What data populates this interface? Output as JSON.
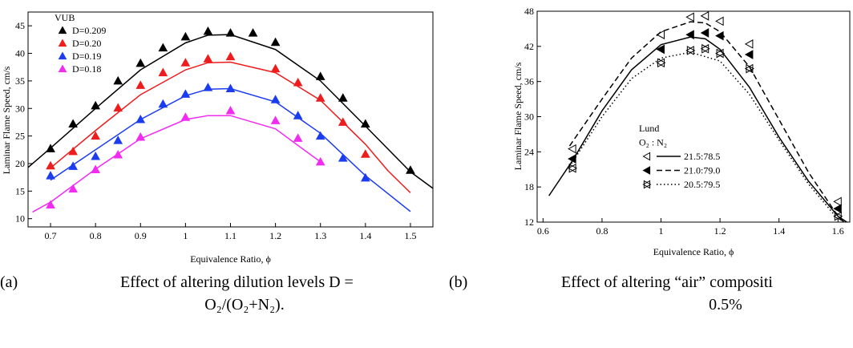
{
  "chart_data": [
    {
      "type": "scatter",
      "ylabel": "Laminar Flame Speed, cm/s",
      "xlabel": "Equivalence Ratio, ϕ",
      "xlim": [
        0.65,
        1.55
      ],
      "xticks": [
        0.7,
        0.8,
        0.9,
        1.0,
        1.1,
        1.2,
        1.3,
        1.4,
        1.5
      ],
      "ylim": [
        8.5,
        47.5
      ],
      "yticks": [
        10,
        15,
        20,
        25,
        30,
        35,
        40,
        45
      ],
      "legend_title": "VUB",
      "caption": {
        "label": "(a)",
        "lines": [
          "Effect of altering dilution levels D =",
          "O₂/(O₂+N₂)."
        ]
      },
      "series": [
        {
          "name": "D=0.209",
          "color": "#000000",
          "marker": "triangle-up",
          "x": [
            0.7,
            0.75,
            0.8,
            0.85,
            0.9,
            0.95,
            1.0,
            1.05,
            1.1,
            1.15,
            1.2,
            1.3,
            1.35,
            1.4,
            1.5
          ],
          "values": [
            22.7,
            27.2,
            30.5,
            35,
            38.2,
            41,
            43,
            44,
            43.7,
            43.7,
            42,
            35.8,
            31.9,
            27.2,
            18.8
          ],
          "fit": {
            "x": [
              0.65,
              0.7,
              0.8,
              0.9,
              1.0,
              1.05,
              1.1,
              1.2,
              1.3,
              1.4,
              1.5,
              1.55
            ],
            "values": [
              19.3,
              22.8,
              30,
              37,
              41.9,
              43.3,
              43.4,
              40.7,
              35,
              26.8,
              18.5,
              15.5
            ]
          }
        },
        {
          "name": "D=0.20",
          "color": "#ee1c1c",
          "marker": "triangle-up",
          "x": [
            0.7,
            0.75,
            0.8,
            0.85,
            0.9,
            0.95,
            1.0,
            1.05,
            1.1,
            1.2,
            1.25,
            1.3,
            1.35,
            1.4
          ],
          "values": [
            19.6,
            22.2,
            25,
            30.1,
            34.2,
            36.5,
            38.3,
            39,
            39.4,
            37.2,
            34.7,
            31.9,
            27.5,
            21.7
          ],
          "fit": {
            "x": [
              0.7,
              0.8,
              0.9,
              1.0,
              1.05,
              1.1,
              1.2,
              1.3,
              1.4,
              1.45,
              1.5
            ],
            "values": [
              19.2,
              26,
              32.5,
              37,
              38.3,
              38.4,
              36.5,
              31.5,
              23.5,
              18.7,
              14.7
            ]
          }
        },
        {
          "name": "D=0.19",
          "color": "#1c3cf0",
          "marker": "triangle-up",
          "x": [
            0.7,
            0.75,
            0.8,
            0.85,
            0.9,
            0.95,
            1.0,
            1.05,
            1.1,
            1.2,
            1.25,
            1.3,
            1.35,
            1.4
          ],
          "values": [
            17.8,
            19.5,
            21.3,
            24.2,
            28,
            30.8,
            32.6,
            33.8,
            33.6,
            31.6,
            28.7,
            25,
            21,
            17.4
          ],
          "fit": {
            "x": [
              0.7,
              0.8,
              0.9,
              1.0,
              1.05,
              1.1,
              1.2,
              1.3,
              1.4,
              1.5
            ],
            "values": [
              17,
              22.5,
              28,
              32.3,
              33.5,
              33.6,
              31.2,
              25.5,
              17.8,
              11.3
            ]
          }
        },
        {
          "name": "D=0.18",
          "color": "#f02cf0",
          "marker": "triangle-up",
          "x": [
            0.7,
            0.75,
            0.8,
            0.85,
            0.9,
            1.0,
            1.1,
            1.2,
            1.25,
            1.3
          ],
          "values": [
            12.5,
            15.4,
            18.9,
            21.6,
            24.8,
            28.4,
            29.6,
            27.8,
            24.6,
            20.3
          ],
          "fit": {
            "x": [
              0.66,
              0.7,
              0.8,
              0.9,
              1.0,
              1.05,
              1.1,
              1.2,
              1.3
            ],
            "values": [
              11.2,
              13,
              19,
              24.5,
              28,
              28.7,
              28.7,
              26.3,
              20.3
            ]
          }
        }
      ]
    },
    {
      "type": "scatter",
      "ylabel": "Laminar Flame Speed, cm/s",
      "xlabel": "Equivalence Ratio, ϕ",
      "xlim": [
        0.58,
        1.64
      ],
      "xticks": [
        0.6,
        0.8,
        1.0,
        1.2,
        1.4,
        1.6
      ],
      "ylim": [
        12,
        48
      ],
      "yticks": [
        12,
        18,
        24,
        30,
        36,
        42,
        48
      ],
      "legend_title": "Lund",
      "legend_subtitle": "O₂ : N₂",
      "caption": {
        "label": "(b)",
        "lines": [
          "Effect of altering “air” compositi",
          "0.5%"
        ]
      },
      "series": [
        {
          "name": "21.5:78.5",
          "color": "#000000",
          "marker": "triangle-left-open",
          "dash": "solid",
          "x": [
            0.7,
            1.0,
            1.1,
            1.15,
            1.2,
            1.3,
            1.6
          ],
          "values": [
            24.5,
            44,
            47,
            47.2,
            46.3,
            42.4,
            15.5
          ],
          "fit": {
            "x": [
              0.62,
              0.7,
              0.8,
              0.9,
              1.0,
              1.1,
              1.15,
              1.2,
              1.3,
              1.4,
              1.5,
              1.6,
              1.63
            ],
            "values": [
              16.5,
              22.5,
              31,
              38,
              42.3,
              43.6,
              43.3,
              41.5,
              35,
              26.5,
              19,
              13,
              12
            ]
          }
        },
        {
          "name": "21.0:79.0",
          "color": "#000000",
          "marker": "triangle-left",
          "dash": "dashed",
          "x": [
            0.7,
            1.0,
            1.1,
            1.15,
            1.2,
            1.3,
            1.6
          ],
          "values": [
            22.8,
            41.5,
            44,
            44.3,
            43.8,
            40.6,
            14.3
          ],
          "fit": {
            "x": [
              0.69,
              0.8,
              0.9,
              1.0,
              1.1,
              1.15,
              1.2,
              1.3,
              1.4,
              1.5,
              1.6,
              1.62
            ],
            "values": [
              25,
              33,
              40,
              44.5,
              46.2,
              46,
              44.5,
              38.5,
              29.5,
              20.5,
              13,
              12
            ]
          }
        },
        {
          "name": "20.5:79.5",
          "color": "#000000",
          "marker": "triangle-left-crossed",
          "dash": "dotted",
          "x": [
            0.7,
            1.0,
            1.1,
            1.15,
            1.2,
            1.3,
            1.6
          ],
          "values": [
            21.2,
            39.2,
            41.3,
            41.6,
            40.8,
            38.2,
            13
          ],
          "fit": {
            "x": [
              0.69,
              0.8,
              0.9,
              1.0,
              1.1,
              1.2,
              1.3,
              1.4,
              1.5,
              1.6
            ],
            "values": [
              21.5,
              30,
              36.5,
              40,
              41,
              39.5,
              33.8,
              26,
              18.5,
              12.5
            ]
          }
        }
      ]
    }
  ]
}
